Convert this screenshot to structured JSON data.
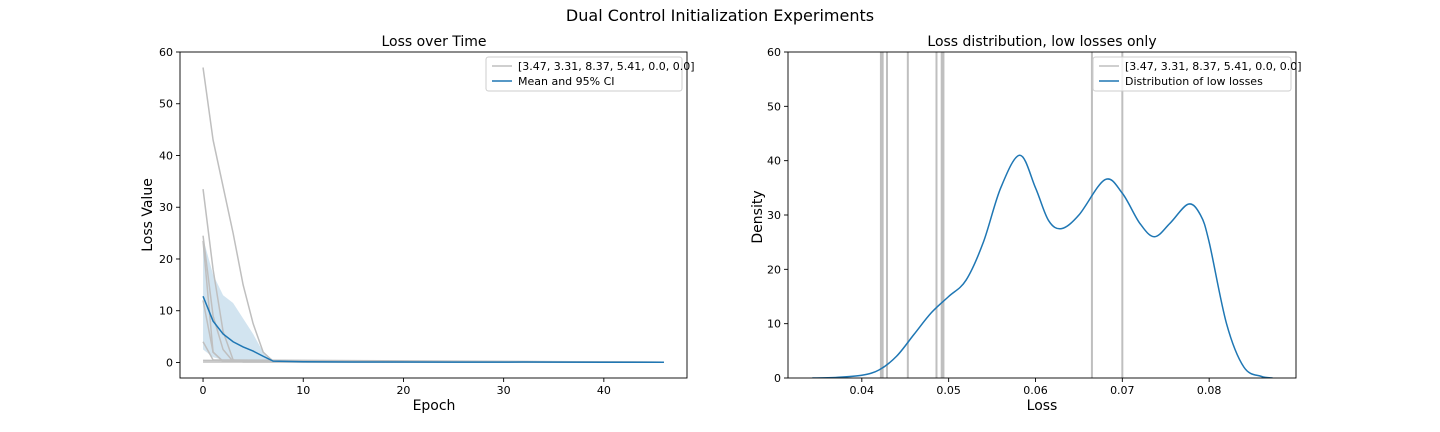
{
  "figure": {
    "suptitle": "Dual Control Initialization Experiments"
  },
  "colors": {
    "individual": "#bfbfbf",
    "mean": "#1f77b4",
    "ci": "#1f77b4"
  },
  "chart_data": [
    {
      "type": "line",
      "title": "Loss over Time",
      "xlabel": "Epoch",
      "ylabel": "Loss Value",
      "xlim": [
        -2.3,
        48.3
      ],
      "ylim": [
        -3,
        60
      ],
      "xticks": [
        0,
        10,
        20,
        30,
        40
      ],
      "yticks": [
        0,
        10,
        20,
        30,
        40,
        50,
        60
      ],
      "legend": {
        "position": "top-right",
        "entries": [
          {
            "label": "[3.47, 3.31, 8.37, 5.41, 0.0, 0.0]",
            "kind": "individual"
          },
          {
            "label": "Mean and 95% CI",
            "kind": "mean"
          }
        ]
      },
      "individual_runs": [
        {
          "x": [
            0,
            1,
            2,
            3,
            4,
            5,
            6,
            7,
            10,
            20,
            30,
            46
          ],
          "y": [
            57,
            43,
            34,
            25,
            15,
            7.5,
            2,
            0.2,
            0.1,
            0.05,
            0.05,
            0.05
          ]
        },
        {
          "x": [
            0,
            1,
            2,
            3,
            4,
            46
          ],
          "y": [
            33.5,
            18,
            6,
            0.5,
            0.1,
            0.05
          ]
        },
        {
          "x": [
            0,
            1,
            2,
            3,
            46
          ],
          "y": [
            24.5,
            9,
            2.5,
            0.2,
            0.05
          ]
        },
        {
          "x": [
            0,
            1,
            2,
            46
          ],
          "y": [
            23.5,
            2,
            0.2,
            0.05
          ]
        },
        {
          "x": [
            0,
            1,
            2,
            46
          ],
          "y": [
            12,
            2,
            0.2,
            0.05
          ]
        },
        {
          "x": [
            0,
            1,
            46
          ],
          "y": [
            4,
            0.5,
            0.05
          ]
        },
        {
          "x": [
            0,
            46
          ],
          "y": [
            0.4,
            0.05
          ]
        },
        {
          "x": [
            0,
            46
          ],
          "y": [
            0.1,
            0.05
          ]
        }
      ],
      "mean": {
        "x": [
          0,
          1,
          2,
          3,
          4,
          5,
          6,
          7,
          10,
          15,
          20,
          25,
          30,
          32,
          35,
          40,
          46
        ],
        "y": [
          12.8,
          8,
          5.5,
          4,
          3,
          2.2,
          1.2,
          0.25,
          0.15,
          0.1,
          0.08,
          0.07,
          0.06,
          0.1,
          0.06,
          0.05,
          0.05
        ]
      },
      "ci": {
        "x": [
          0,
          1,
          2,
          3,
          4,
          5,
          6,
          7,
          10,
          46
        ],
        "lower": [
          2.5,
          1,
          0.5,
          0.2,
          0.1,
          0.05,
          0.05,
          0.05,
          0.05,
          0.03
        ],
        "upper": [
          24,
          17,
          13,
          11.5,
          8.5,
          5.5,
          2,
          0.5,
          0.3,
          0.08
        ]
      }
    },
    {
      "type": "line",
      "title": "Loss distribution, low losses only",
      "xlabel": "Loss",
      "ylabel": "Density",
      "xlim": [
        0.0315,
        0.09
      ],
      "ylim": [
        0,
        60
      ],
      "xticks": [
        0.04,
        0.05,
        0.06,
        0.07,
        0.08
      ],
      "yticks": [
        0,
        10,
        20,
        30,
        40,
        50,
        60
      ],
      "legend": {
        "position": "top-right",
        "entries": [
          {
            "label": "[3.47, 3.31, 8.37, 5.41, 0.0, 0.0]",
            "kind": "individual"
          },
          {
            "label": "Distribution of low losses",
            "kind": "mean"
          }
        ]
      },
      "vlines": [
        0.0422,
        0.0424,
        0.0429,
        0.0453,
        0.0486,
        0.0492,
        0.0494,
        0.0665,
        0.07
      ],
      "density": {
        "x": [
          0.0343,
          0.037,
          0.04,
          0.042,
          0.044,
          0.046,
          0.048,
          0.05,
          0.052,
          0.054,
          0.056,
          0.0582,
          0.06,
          0.0615,
          0.063,
          0.065,
          0.068,
          0.07,
          0.072,
          0.0737,
          0.0755,
          0.0776,
          0.079,
          0.08,
          0.082,
          0.084,
          0.086,
          0.0873
        ],
        "y": [
          0,
          0.1,
          0.5,
          1.5,
          4,
          8,
          12,
          15,
          18,
          25,
          35,
          41,
          35,
          29,
          27.5,
          30,
          36.5,
          34,
          28.5,
          26,
          28.5,
          32,
          30,
          25,
          10,
          2,
          0.3,
          0
        ]
      }
    }
  ]
}
